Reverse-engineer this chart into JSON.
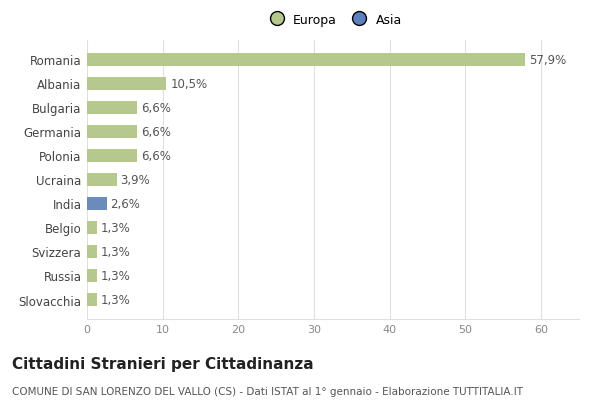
{
  "categories": [
    "Romania",
    "Albania",
    "Bulgaria",
    "Germania",
    "Polonia",
    "Ucraina",
    "India",
    "Belgio",
    "Svizzera",
    "Russia",
    "Slovacchia"
  ],
  "values": [
    57.9,
    10.5,
    6.6,
    6.6,
    6.6,
    3.9,
    2.6,
    1.3,
    1.3,
    1.3,
    1.3
  ],
  "labels": [
    "57,9%",
    "10,5%",
    "6,6%",
    "6,6%",
    "6,6%",
    "3,9%",
    "2,6%",
    "1,3%",
    "1,3%",
    "1,3%",
    "1,3%"
  ],
  "colors": [
    "#b5c98e",
    "#b5c98e",
    "#b5c98e",
    "#b5c98e",
    "#b5c98e",
    "#b5c98e",
    "#6b8cba",
    "#b5c98e",
    "#b5c98e",
    "#b5c98e",
    "#b5c98e"
  ],
  "europa_color": "#b5c98e",
  "asia_color": "#5b7fc0",
  "title": "Cittadini Stranieri per Cittadinanza",
  "subtitle": "COMUNE DI SAN LORENZO DEL VALLO (CS) - Dati ISTAT al 1° gennaio - Elaborazione TUTTITALIA.IT",
  "xlim": [
    0,
    65
  ],
  "xticks": [
    0,
    10,
    20,
    30,
    40,
    50,
    60
  ],
  "grid_color": "#e0e0e0",
  "bar_height": 0.55,
  "label_fontsize": 8.5,
  "tick_fontsize": 8,
  "title_fontsize": 11,
  "subtitle_fontsize": 7.5,
  "ytick_fontsize": 8.5
}
